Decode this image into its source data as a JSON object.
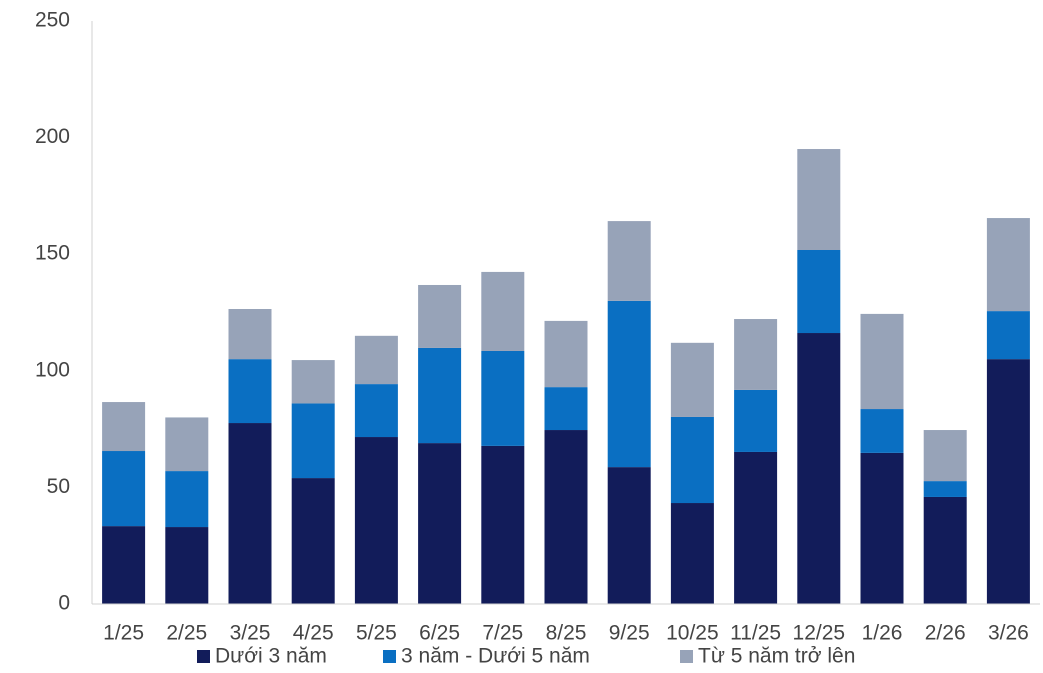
{
  "chart_data": {
    "type": "stacked_bar",
    "categories": [
      "1/25",
      "2/25",
      "3/25",
      "4/25",
      "5/25",
      "6/25",
      "7/25",
      "8/25",
      "9/25",
      "10/25",
      "11/25",
      "12/25",
      "1/26",
      "2/26",
      "3/26"
    ],
    "series": [
      {
        "name": "Dưới 3 năm",
        "color": "#121c5a",
        "values": [
          33.4,
          33.0,
          77.6,
          54.0,
          71.6,
          69.0,
          67.8,
          74.6,
          58.7,
          43.3,
          65.2,
          116.2,
          64.8,
          45.9,
          105.0
        ]
      },
      {
        "name": "3 năm - Dưới 5 năm",
        "color": "#0a6fc2",
        "values": [
          32.2,
          24.0,
          27.4,
          32.0,
          22.7,
          40.8,
          40.7,
          18.4,
          71.3,
          36.9,
          26.6,
          35.6,
          18.8,
          6.8,
          20.6
        ]
      },
      {
        "name": "Từ 5 năm trở lên",
        "color": "#97a3b8",
        "values": [
          21.0,
          23.0,
          21.5,
          18.6,
          20.7,
          27.0,
          33.9,
          28.4,
          34.2,
          31.8,
          30.4,
          43.3,
          40.8,
          21.9,
          39.9
        ]
      }
    ],
    "ylim": [
      0,
      250
    ],
    "yticks": [
      0,
      50,
      100,
      150,
      200,
      250
    ],
    "grid": false,
    "legend": "bottom"
  }
}
